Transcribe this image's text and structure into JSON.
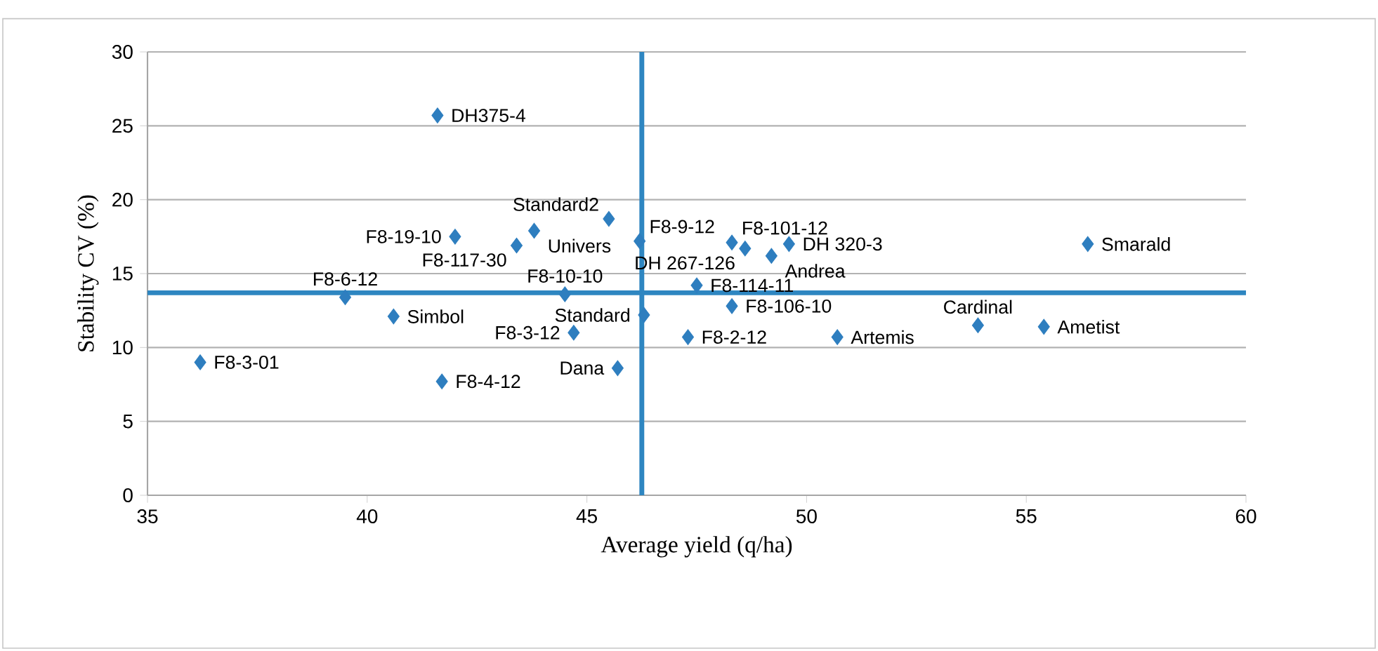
{
  "chart_data": {
    "type": "scatter",
    "xlabel": "Average yield (q/ha)",
    "ylabel": "Stability CV (%)",
    "x": [
      41.6,
      42.0,
      43.8,
      43.4,
      45.5,
      46.2,
      48.3,
      48.6,
      49.2,
      49.6,
      39.5,
      40.6,
      36.2,
      41.7,
      44.5,
      44.7,
      45.7,
      46.3,
      47.3,
      47.5,
      48.3,
      50.7,
      53.9,
      55.4,
      56.4
    ],
    "values": [
      25.7,
      17.5,
      17.9,
      16.9,
      18.7,
      17.2,
      17.1,
      16.7,
      16.2,
      17.0,
      13.4,
      12.1,
      9.0,
      7.7,
      13.6,
      11.0,
      8.6,
      12.2,
      10.7,
      14.2,
      12.8,
      10.7,
      11.5,
      11.4,
      17.0
    ],
    "color": "#2e7ebf",
    "marker": "diamond",
    "xlim": [
      35,
      60
    ],
    "ylim": [
      0,
      30
    ],
    "xticks": [
      35,
      40,
      45,
      50,
      55,
      60
    ],
    "yticks": [
      0,
      5,
      10,
      15,
      20,
      25,
      30
    ],
    "grid": "y",
    "annotations": [
      {
        "text": "DH375-4",
        "x": 41.6,
        "y": 25.7
      },
      {
        "text": "F8-19-10",
        "x": 42.0,
        "y": 17.5
      },
      {
        "text": "Univers",
        "x": 43.8,
        "y": 17.9
      },
      {
        "text": "F8-117-30",
        "x": 43.4,
        "y": 16.9
      },
      {
        "text": "Standard2",
        "x": 45.5,
        "y": 18.7
      },
      {
        "text": "F8-9-12",
        "x": 46.2,
        "y": 17.2
      },
      {
        "text": "F8-101-12",
        "x": 48.3,
        "y": 17.1
      },
      {
        "text": "DH 267-126",
        "x": 48.6,
        "y": 16.7
      },
      {
        "text": "Andrea",
        "x": 49.2,
        "y": 16.2
      },
      {
        "text": "DH 320-3",
        "x": 49.6,
        "y": 17.0
      },
      {
        "text": "F8-6-12",
        "x": 39.5,
        "y": 13.4
      },
      {
        "text": "Simbol",
        "x": 40.6,
        "y": 12.1
      },
      {
        "text": "F8-3-01",
        "x": 36.2,
        "y": 9.0
      },
      {
        "text": "F8-4-12",
        "x": 41.7,
        "y": 7.7
      },
      {
        "text": "F8-10-10",
        "x": 44.5,
        "y": 13.6
      },
      {
        "text": "F8-3-12",
        "x": 44.7,
        "y": 11.0
      },
      {
        "text": "Dana",
        "x": 45.7,
        "y": 8.6
      },
      {
        "text": "Standard",
        "x": 46.3,
        "y": 12.2
      },
      {
        "text": "F8-2-12",
        "x": 47.3,
        "y": 10.7
      },
      {
        "text": "F8-114-11",
        "x": 47.5,
        "y": 14.2
      },
      {
        "text": "F8-106-10",
        "x": 48.3,
        "y": 12.8
      },
      {
        "text": "Artemis",
        "x": 50.7,
        "y": 10.7
      },
      {
        "text": "Cardinal",
        "x": 53.9,
        "y": 11.5
      },
      {
        "text": "Ametist",
        "x": 55.4,
        "y": 11.4
      },
      {
        "text": "Smarald",
        "x": 56.4,
        "y": 17.0
      }
    ],
    "ref_lines": [
      {
        "axis": "x",
        "value": 46.25,
        "color": "#2e86c1"
      },
      {
        "axis": "y",
        "value": 13.7,
        "color": "#2e86c1"
      }
    ]
  }
}
